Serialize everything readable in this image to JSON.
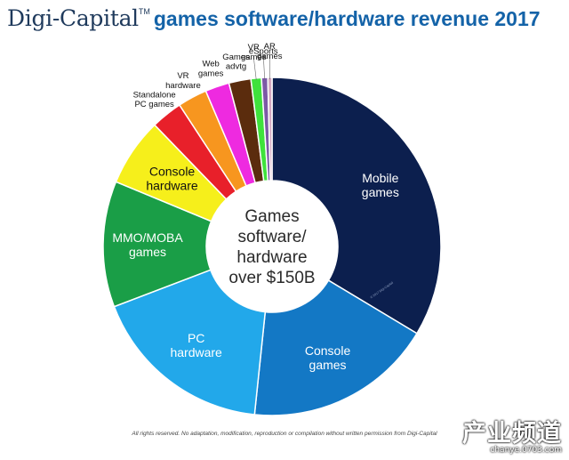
{
  "header": {
    "brand": "Digi-Capital",
    "trademark": "TM",
    "title": "games software/hardware revenue 2017"
  },
  "chart_data": {
    "type": "pie",
    "variant": "donut",
    "title": "games software/hardware revenue 2017",
    "center_label": [
      "Games",
      "software/",
      "hardware",
      "over $150B"
    ],
    "slice_order": "clockwise from top",
    "slices": [
      {
        "label": [
          "Mobile",
          "games"
        ],
        "value": 33.5,
        "color": "#0c1f4e",
        "label_color": "#ffffff"
      },
      {
        "label": [
          "Console",
          "games"
        ],
        "value": 18.0,
        "color": "#1378c5",
        "label_color": "#ffffff"
      },
      {
        "label": [
          "PC",
          "hardware"
        ],
        "value": 17.5,
        "color": "#22a8ea",
        "label_color": "#ffffff"
      },
      {
        "label": [
          "MMO/MOBA",
          "games"
        ],
        "value": 12.0,
        "color": "#1a9e47",
        "label_color": "#ffffff"
      },
      {
        "label": [
          "Console",
          "hardware"
        ],
        "value": 6.5,
        "color": "#f6ef1b",
        "label_color": "#111111"
      },
      {
        "label": [
          "Standalone",
          "PC games"
        ],
        "value": 3.0,
        "color": "#e8202a",
        "label_color": "#111111"
      },
      {
        "label": [
          "VR",
          "hardware"
        ],
        "value": 2.8,
        "color": "#f7961f",
        "label_color": "#111111"
      },
      {
        "label": [
          "Web",
          "games"
        ],
        "value": 2.3,
        "color": "#ee2ae0",
        "label_color": "#111111"
      },
      {
        "label": [
          "Games",
          "advtg"
        ],
        "value": 2.1,
        "color": "#5b2c0d",
        "label_color": "#111111"
      },
      {
        "label": [
          "VR",
          "games"
        ],
        "value": 1.0,
        "color": "#3fe23c",
        "label_color": "#111111"
      },
      {
        "label": [
          "eSports"
        ],
        "value": 0.6,
        "color": "#7c59a6",
        "label_color": "#111111"
      },
      {
        "label": [
          "AR",
          "games"
        ],
        "value": 0.4,
        "color": "#d4a7c0",
        "label_color": "#111111"
      }
    ],
    "inner_copyright": "© 2017 Digi-Capital"
  },
  "footer": {
    "rights": "All rights reserved. No adaptation, modification, reproduction or compilation without written permission from Digi-Capital"
  },
  "watermark": {
    "title": "产业频道",
    "url": "chanye.0703.com"
  }
}
